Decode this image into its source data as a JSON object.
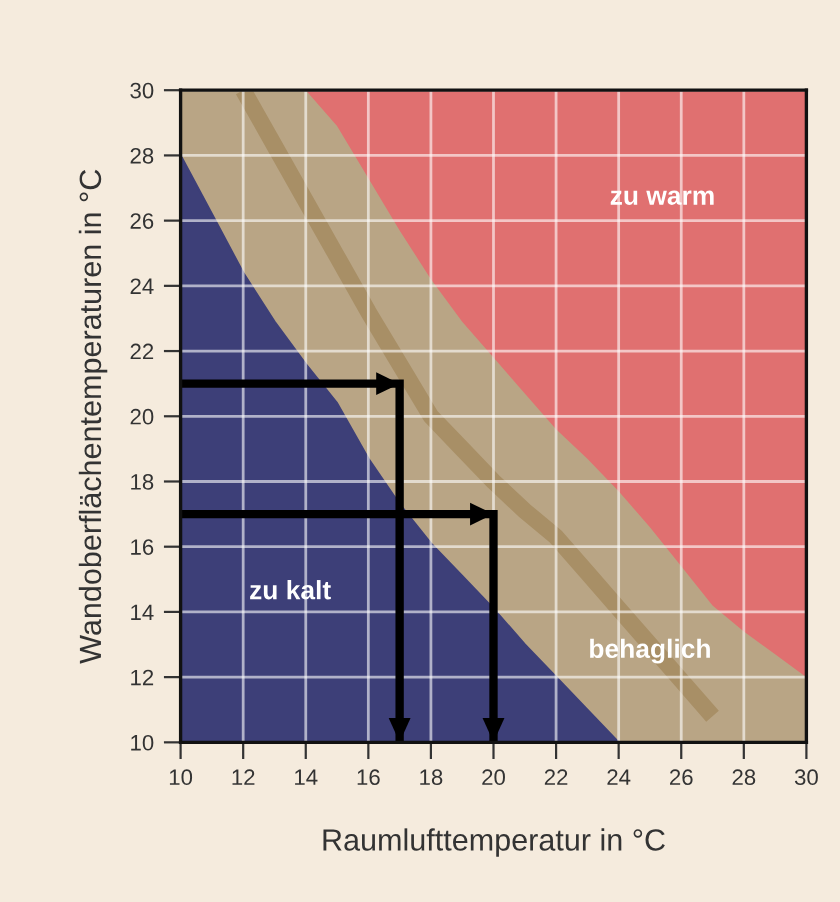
{
  "chart_data": {
    "type": "area",
    "xlabel": "Raumlufttemperatur in °C",
    "ylabel": "Wandoberflächentemperaturen in °C",
    "xlim": [
      10,
      30
    ],
    "ylim": [
      10,
      30
    ],
    "xticks": [
      10,
      12,
      14,
      16,
      18,
      20,
      22,
      24,
      26,
      28,
      30
    ],
    "yticks": [
      10,
      12,
      14,
      16,
      18,
      20,
      22,
      24,
      26,
      28,
      30
    ],
    "grid": true,
    "series": [
      {
        "color": "#e07070",
        "x": [
          14,
          18,
          21,
          24,
          27,
          30
        ],
        "values": [
          30,
          30,
          30,
          30,
          30,
          30
        ]
      },
      {
        "type": "line",
        "color": "#a88f66",
        "x": [
          10,
          11,
          12,
          13,
          14,
          15,
          16,
          17,
          18,
          19,
          20,
          21,
          22,
          23,
          24,
          25,
          26,
          27,
          28,
          29,
          30
        ],
        "values": [
          null,
          null,
          30,
          28.3,
          26.6,
          24.9,
          23.2,
          21.6,
          20,
          19,
          18,
          17.1,
          16.3,
          15.2,
          14.1,
          13,
          11.9,
          10.8,
          null,
          null,
          null
        ],
        "lower": [
          28,
          26.2,
          24.4,
          22.9,
          21.6,
          20.4,
          18.7,
          17.3,
          16.1,
          15.1,
          14.1,
          13,
          12,
          11,
          10,
          10,
          10,
          10,
          10,
          10,
          10
        ],
        "upper": [
          30,
          30,
          30,
          30,
          30,
          28.9,
          27.3,
          25.7,
          24.2,
          22.9,
          21.8,
          20.7,
          19.6,
          18.7,
          17.7,
          16.6,
          15.4,
          14.2,
          13.4,
          12.7,
          12
        ]
      },
      {
        "color": "#3d3f78",
        "x": [
          10,
          11,
          12,
          13,
          14,
          15,
          16,
          17,
          18,
          19,
          20,
          21,
          22,
          23,
          24
        ],
        "values": [
          28,
          26.2,
          24.4,
          22.9,
          21.6,
          20.4,
          18.7,
          17.3,
          16.1,
          15.1,
          14.1,
          13,
          12,
          11,
          10
        ]
      },
      {
        "type": "line",
        "color": "#000000",
        "x": [
          10,
          17,
          17
        ],
        "values": [
          21,
          21,
          10
        ]
      },
      {
        "type": "line",
        "color": "#000000",
        "x": [
          10,
          20,
          20
        ],
        "values": [
          17,
          17,
          10
        ]
      }
    ],
    "annotations": [
      "zu warm",
      "zu kalt",
      "behaglich"
    ]
  }
}
